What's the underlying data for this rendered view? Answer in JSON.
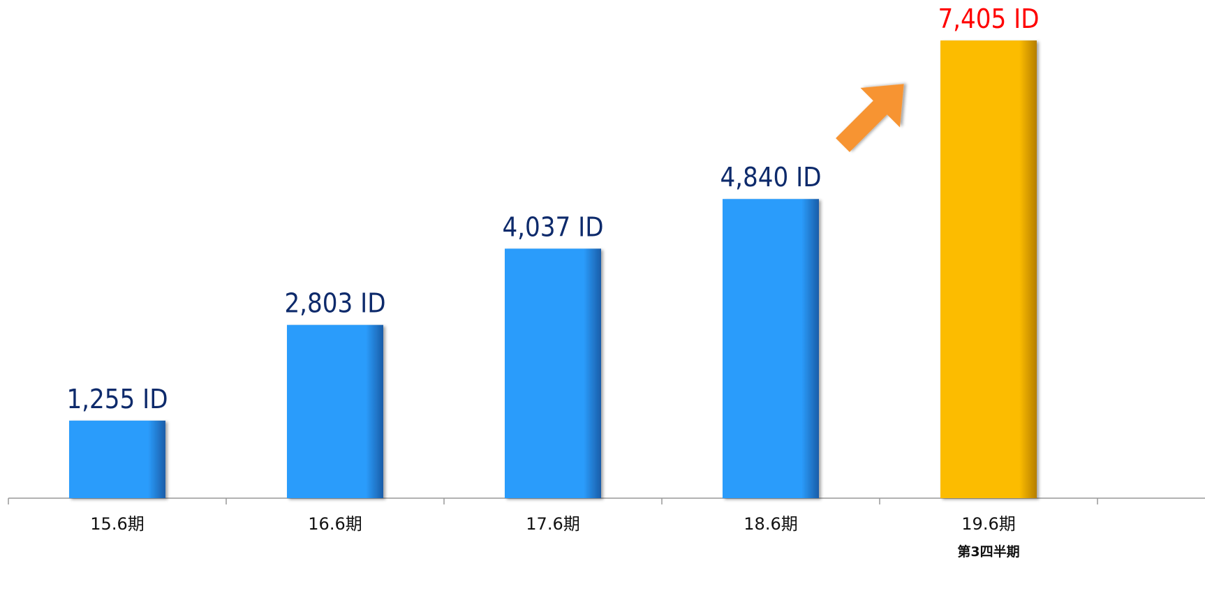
{
  "chart_data": {
    "type": "bar",
    "categories": [
      "15.6期",
      "16.6期",
      "17.6期",
      "18.6期",
      "19.6期"
    ],
    "category_sublabels": [
      "",
      "",
      "",
      "",
      "第3四半期"
    ],
    "values": [
      1255,
      2803,
      4037,
      4840,
      7405
    ],
    "data_labels": [
      "1,255 ID",
      "2,803 ID",
      "4,037 ID",
      "4,840 ID",
      "7,405 ID"
    ],
    "title": "",
    "xlabel": "",
    "ylabel": "",
    "ylim": [
      0,
      7405
    ],
    "grid": false,
    "legend": "none",
    "highlight_index": 4,
    "annotation": "upward-arrow-icon",
    "colors": {
      "bar": "#2b9cfb",
      "bar_highlight": "#fcbc00",
      "label": "#0d2a6b",
      "label_highlight": "#ff0000",
      "arrow": "#f79433",
      "axis": "#999999"
    }
  }
}
